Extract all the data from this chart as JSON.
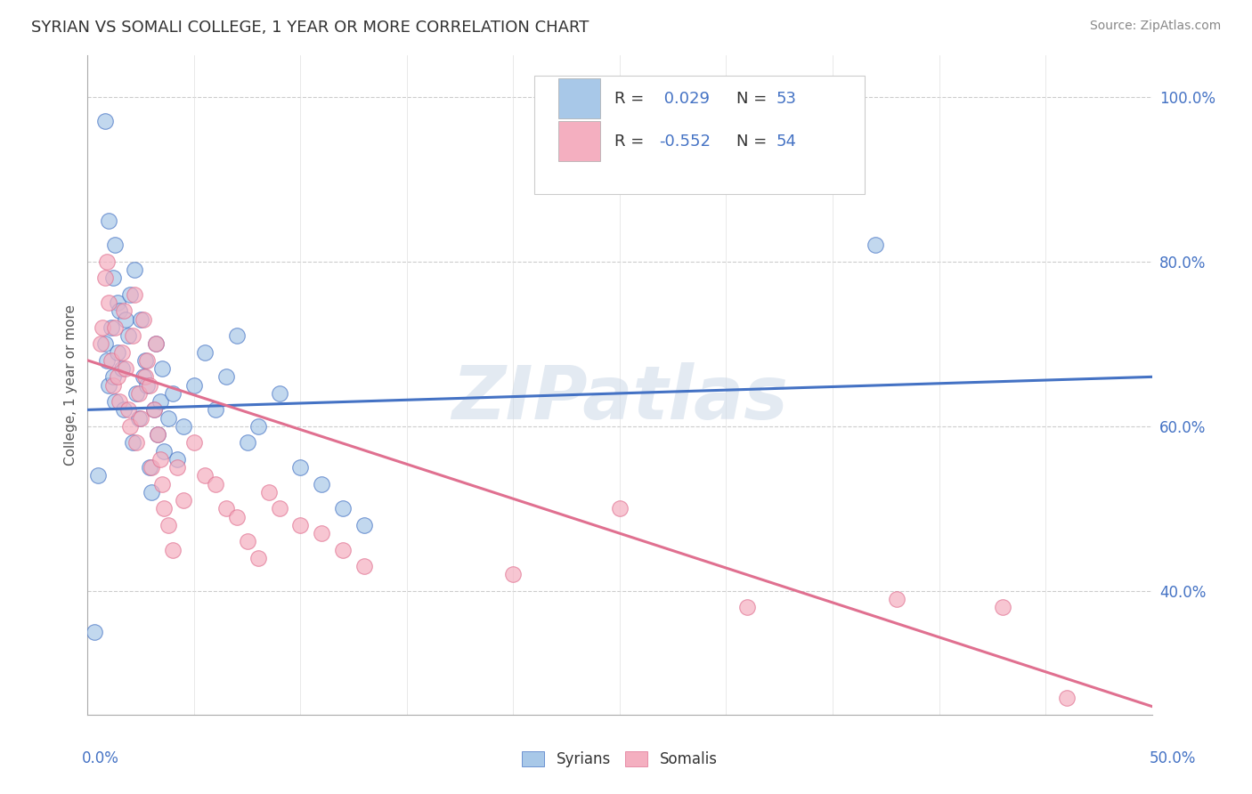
{
  "title": "SYRIAN VS SOMALI COLLEGE, 1 YEAR OR MORE CORRELATION CHART",
  "source": "Source: ZipAtlas.com",
  "ylabel": "College, 1 year or more",
  "watermark": "ZIPatlas",
  "syrian_color": "#a8c8e8",
  "somali_color": "#f4afc0",
  "syrian_line_color": "#4472c4",
  "somali_line_color": "#e07090",
  "xlim": [
    0.0,
    0.5
  ],
  "ylim": [
    0.25,
    1.05
  ],
  "yticks": [
    0.4,
    0.6,
    0.8,
    1.0
  ],
  "ytick_labels": [
    "40.0%",
    "60.0%",
    "80.0%",
    "100.0%"
  ],
  "xtick_label_left": "0.0%",
  "xtick_label_right": "50.0%",
  "legend_syrians_label": "Syrians",
  "legend_somalis_label": "Somalis",
  "syrian_R_text": "R = ",
  "syrian_R_val": " 0.029",
  "syrian_N_text": "  N = ",
  "syrian_N_val": "53",
  "somali_R_text": "R = ",
  "somali_R_val": "-0.552",
  "somali_N_text": "  N = ",
  "somali_N_val": "54",
  "syrian_trend_y0": 0.62,
  "syrian_trend_y1": 0.66,
  "somali_trend_y0": 0.68,
  "somali_trend_y1": 0.26,
  "syrian_scatter_x": [
    0.008,
    0.01,
    0.012,
    0.013,
    0.014,
    0.008,
    0.009,
    0.01,
    0.011,
    0.012,
    0.013,
    0.014,
    0.015,
    0.016,
    0.017,
    0.018,
    0.019,
    0.02,
    0.021,
    0.022,
    0.023,
    0.024,
    0.025,
    0.026,
    0.027,
    0.028,
    0.029,
    0.03,
    0.031,
    0.032,
    0.033,
    0.034,
    0.035,
    0.036,
    0.038,
    0.04,
    0.042,
    0.045,
    0.05,
    0.055,
    0.06,
    0.065,
    0.07,
    0.075,
    0.08,
    0.09,
    0.1,
    0.11,
    0.12,
    0.13,
    0.37,
    0.003,
    0.005
  ],
  "syrian_scatter_y": [
    0.97,
    0.85,
    0.78,
    0.82,
    0.75,
    0.7,
    0.68,
    0.65,
    0.72,
    0.66,
    0.63,
    0.69,
    0.74,
    0.67,
    0.62,
    0.73,
    0.71,
    0.76,
    0.58,
    0.79,
    0.64,
    0.61,
    0.73,
    0.66,
    0.68,
    0.65,
    0.55,
    0.52,
    0.62,
    0.7,
    0.59,
    0.63,
    0.67,
    0.57,
    0.61,
    0.64,
    0.56,
    0.6,
    0.65,
    0.69,
    0.62,
    0.66,
    0.71,
    0.58,
    0.6,
    0.64,
    0.55,
    0.53,
    0.5,
    0.48,
    0.82,
    0.35,
    0.54
  ],
  "somali_scatter_x": [
    0.006,
    0.007,
    0.008,
    0.009,
    0.01,
    0.011,
    0.012,
    0.013,
    0.014,
    0.015,
    0.016,
    0.017,
    0.018,
    0.019,
    0.02,
    0.021,
    0.022,
    0.023,
    0.024,
    0.025,
    0.026,
    0.027,
    0.028,
    0.029,
    0.03,
    0.031,
    0.032,
    0.033,
    0.034,
    0.035,
    0.036,
    0.038,
    0.04,
    0.042,
    0.045,
    0.05,
    0.055,
    0.06,
    0.065,
    0.07,
    0.075,
    0.08,
    0.085,
    0.09,
    0.1,
    0.11,
    0.12,
    0.13,
    0.2,
    0.25,
    0.31,
    0.38,
    0.43,
    0.46
  ],
  "somali_scatter_y": [
    0.7,
    0.72,
    0.78,
    0.8,
    0.75,
    0.68,
    0.65,
    0.72,
    0.66,
    0.63,
    0.69,
    0.74,
    0.67,
    0.62,
    0.6,
    0.71,
    0.76,
    0.58,
    0.64,
    0.61,
    0.73,
    0.66,
    0.68,
    0.65,
    0.55,
    0.62,
    0.7,
    0.59,
    0.56,
    0.53,
    0.5,
    0.48,
    0.45,
    0.55,
    0.51,
    0.58,
    0.54,
    0.53,
    0.5,
    0.49,
    0.46,
    0.44,
    0.52,
    0.5,
    0.48,
    0.47,
    0.45,
    0.43,
    0.42,
    0.5,
    0.38,
    0.39,
    0.38,
    0.27
  ],
  "title_fontsize": 13,
  "source_fontsize": 10,
  "legend_fontsize": 13,
  "axis_label_fontsize": 11,
  "tick_fontsize": 12
}
